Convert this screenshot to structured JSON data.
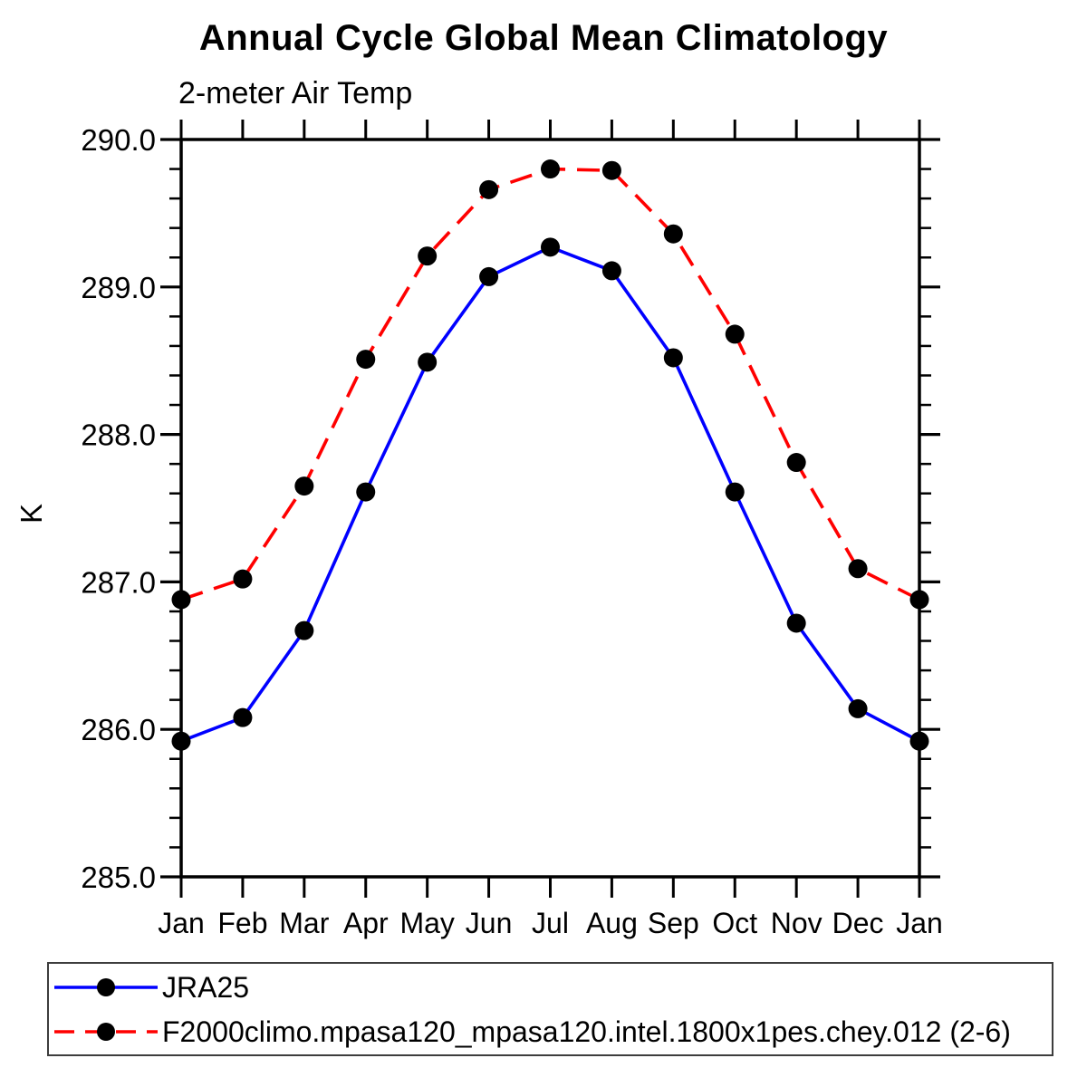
{
  "chart_data": {
    "type": "line",
    "title": "Annual Cycle Global Mean Climatology",
    "subtitle": "2-meter Air Temp",
    "ylabel": "K",
    "xlabel": "",
    "categories": [
      "Jan",
      "Feb",
      "Mar",
      "Apr",
      "May",
      "Jun",
      "Jul",
      "Aug",
      "Sep",
      "Oct",
      "Nov",
      "Dec",
      "Jan"
    ],
    "ylim": [
      285.0,
      290.0
    ],
    "ytick_major_labels": [
      "285.0",
      "286.0",
      "287.0",
      "288.0",
      "289.0",
      "290.0"
    ],
    "ytick_major_values": [
      285.0,
      286.0,
      287.0,
      288.0,
      289.0,
      290.0
    ],
    "ytick_minor_step": 0.2,
    "grid": false,
    "legend_position": "bottom-box",
    "axis_color": "#000000",
    "marker_color": "#000000",
    "series": [
      {
        "name": "JRA25",
        "color": "#0000ff",
        "line_style": "solid",
        "marker": "filled-circle",
        "values": [
          285.92,
          286.08,
          286.67,
          287.61,
          288.49,
          289.07,
          289.27,
          289.11,
          288.52,
          287.61,
          286.72,
          286.14,
          285.92
        ]
      },
      {
        "name": "F2000climo.mpasa120_mpasa120.intel.1800x1pes.chey.012 (2-6)",
        "color": "#ff0000",
        "line_style": "dashed",
        "marker": "filled-circle",
        "values": [
          286.88,
          287.02,
          287.65,
          288.51,
          289.21,
          289.66,
          289.8,
          289.79,
          289.36,
          288.68,
          287.81,
          287.09,
          286.88
        ]
      }
    ]
  }
}
